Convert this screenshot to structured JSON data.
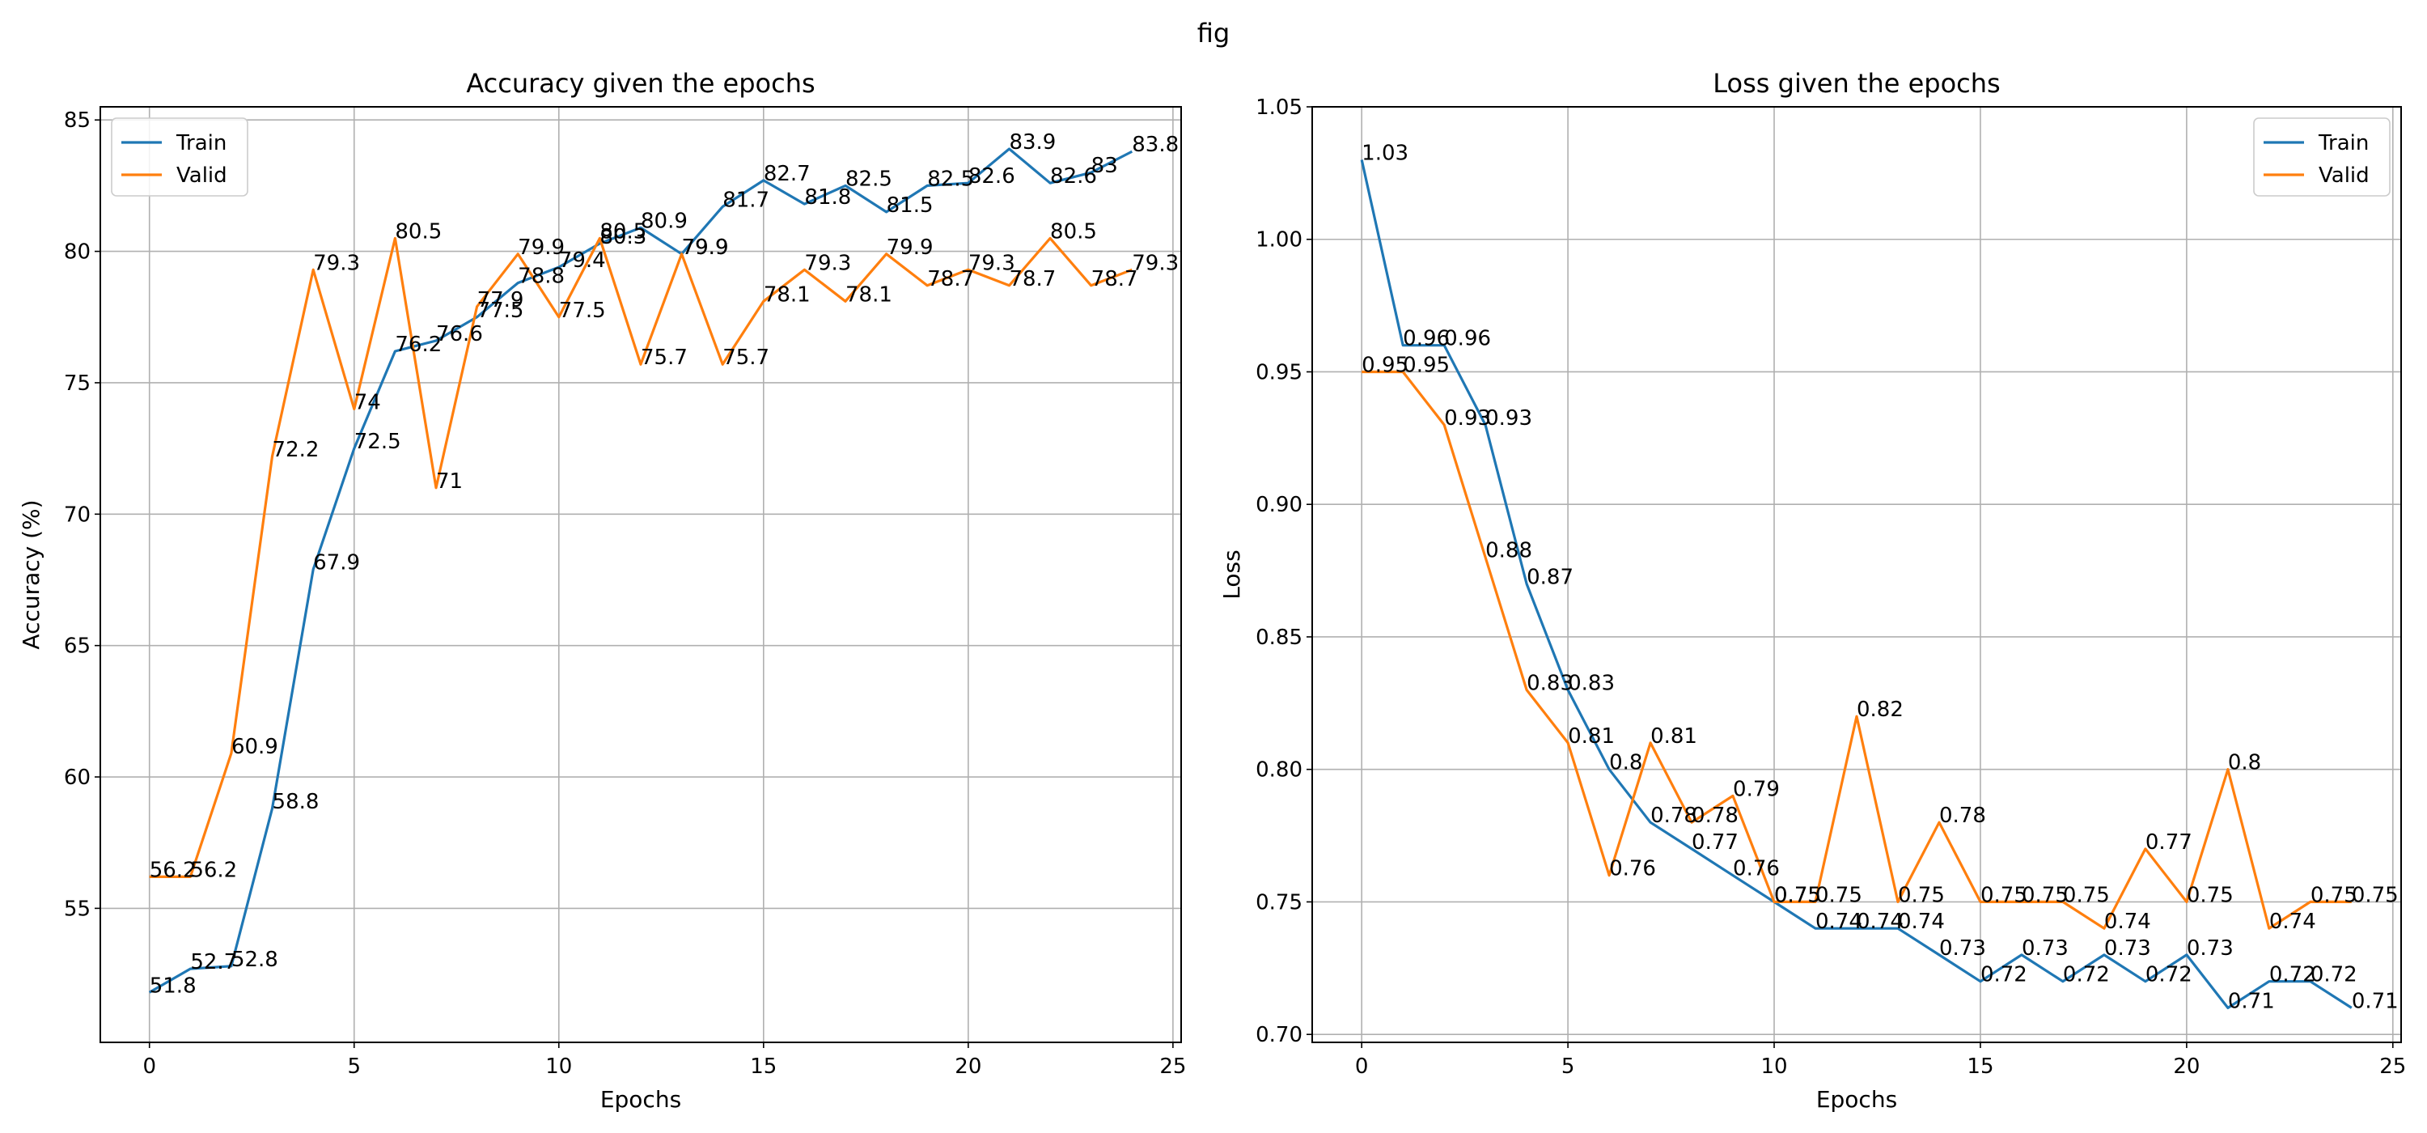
{
  "figure": {
    "suptitle": "fig"
  },
  "colors": {
    "train": "#1f77b4",
    "valid": "#ff7f0e",
    "grid": "#b0b0b0",
    "axes": "#000000"
  },
  "chart_data": [
    {
      "type": "line",
      "title": "Accuracy given the epochs",
      "xlabel": "Epochs",
      "ylabel": "Accuracy (%)",
      "xlim": [
        -1.2,
        25.2
      ],
      "ylim": [
        49.9,
        85.5
      ],
      "xticks": [
        0,
        5,
        10,
        15,
        20,
        25
      ],
      "yticks": [
        55,
        60,
        65,
        70,
        75,
        80,
        85
      ],
      "grid": true,
      "legend_location": "upper-left",
      "x": [
        0,
        1,
        2,
        3,
        4,
        5,
        6,
        7,
        8,
        9,
        10,
        11,
        12,
        13,
        14,
        15,
        16,
        17,
        18,
        19,
        20,
        21,
        22,
        23,
        24
      ],
      "series": [
        {
          "name": "Train",
          "color": "#1f77b4",
          "values": [
            51.8,
            52.7,
            52.8,
            58.8,
            67.9,
            72.5,
            76.2,
            76.6,
            77.5,
            78.8,
            79.4,
            80.3,
            80.9,
            79.9,
            81.7,
            82.7,
            81.8,
            82.5,
            81.5,
            82.5,
            82.6,
            83.9,
            82.6,
            83.0,
            83.8
          ]
        },
        {
          "name": "Valid",
          "color": "#ff7f0e",
          "values": [
            56.2,
            56.2,
            60.9,
            72.2,
            79.3,
            74.0,
            80.5,
            71.0,
            77.9,
            79.9,
            77.5,
            80.5,
            75.7,
            79.9,
            75.7,
            78.1,
            79.3,
            78.1,
            79.9,
            78.7,
            79.3,
            78.7,
            80.5,
            78.7,
            79.3
          ]
        }
      ]
    },
    {
      "type": "line",
      "title": "Loss given the epochs",
      "xlabel": "Epochs",
      "ylabel": "Loss",
      "xlim": [
        -1.2,
        25.2
      ],
      "ylim": [
        0.697,
        1.05
      ],
      "xticks": [
        0,
        5,
        10,
        15,
        20,
        25
      ],
      "yticks": [
        0.7,
        0.75,
        0.8,
        0.85,
        0.9,
        0.95,
        1.0,
        1.05
      ],
      "grid": true,
      "legend_location": "upper-right",
      "x": [
        0,
        1,
        2,
        3,
        4,
        5,
        6,
        7,
        8,
        9,
        10,
        11,
        12,
        13,
        14,
        15,
        16,
        17,
        18,
        19,
        20,
        21,
        22,
        23,
        24
      ],
      "series": [
        {
          "name": "Train",
          "color": "#1f77b4",
          "values": [
            1.03,
            0.96,
            0.96,
            0.93,
            0.87,
            0.83,
            0.8,
            0.78,
            0.77,
            0.76,
            0.75,
            0.74,
            0.74,
            0.74,
            0.73,
            0.72,
            0.73,
            0.72,
            0.73,
            0.72,
            0.73,
            0.71,
            0.72,
            0.72,
            0.71
          ]
        },
        {
          "name": "Valid",
          "color": "#ff7f0e",
          "values": [
            0.95,
            0.95,
            0.93,
            0.88,
            0.83,
            0.81,
            0.76,
            0.81,
            0.78,
            0.79,
            0.75,
            0.75,
            0.82,
            0.75,
            0.78,
            0.75,
            0.75,
            0.75,
            0.74,
            0.77,
            0.75,
            0.8,
            0.74,
            0.75,
            0.75
          ]
        }
      ]
    }
  ]
}
